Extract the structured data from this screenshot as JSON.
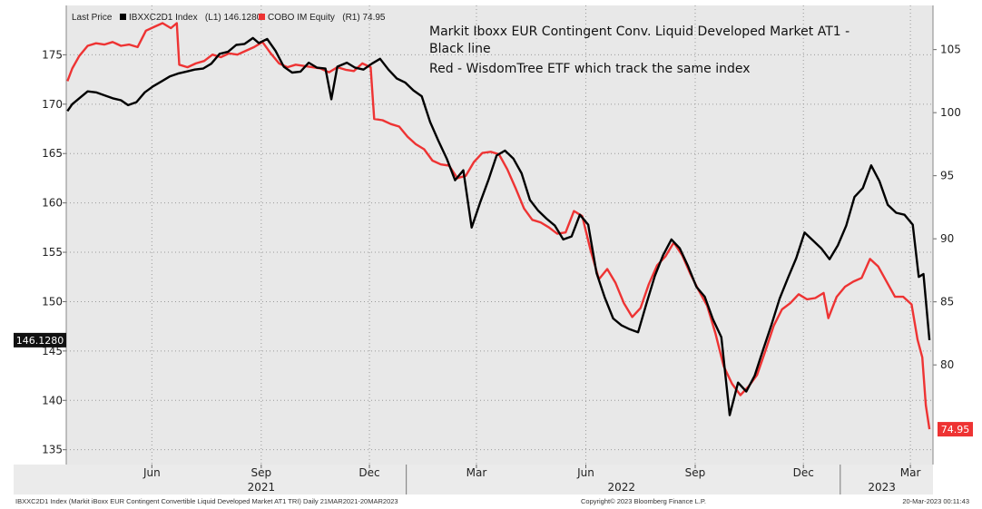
{
  "header": {
    "last_price_label": "Last Price",
    "series1_label": "IBXXC2D1 Index   (L1) 146.1280",
    "series2_label": "COBO IM Equity   (R1) 74.95"
  },
  "annotation": {
    "line1": "Markit Iboxx EUR Contingent Conv. Liquid Developed Market AT1 -",
    "line2": "Black line",
    "line3": "Red - WisdomTree ETF which track the same index"
  },
  "footer": {
    "left": "IBXXC2D1 Index (Markit iBoxx EUR Contingent Convertible Liquid Developed Market AT1 TRI)  Daily 21MAR2021-20MAR2023",
    "center": "Copyright© 2023 Bloomberg Finance L.P.",
    "right": "20-Mar-2023 00:11:43"
  },
  "last_value_tags": {
    "left": "146.1280",
    "right": "74.95"
  },
  "colors": {
    "series1": "#000000",
    "series2": "#ee3333",
    "plot_bg": "#e8e8e8",
    "axis_bg": "#ebebeb"
  },
  "chart_data": {
    "type": "line",
    "x_range": [
      "2021-03-21",
      "2023-03-20"
    ],
    "x_tick_labels": [
      {
        "date": "2021-06-01",
        "label": "Jun"
      },
      {
        "date": "2021-09-01",
        "label": "Sep"
      },
      {
        "date": "2021-12-01",
        "label": "Dec"
      },
      {
        "date": "2022-03-01",
        "label": "Mar"
      },
      {
        "date": "2022-06-01",
        "label": "Jun"
      },
      {
        "date": "2022-09-01",
        "label": "Sep"
      },
      {
        "date": "2022-12-01",
        "label": "Dec"
      },
      {
        "date": "2023-03-01",
        "label": "Mar"
      }
    ],
    "x_year_labels": [
      {
        "date": "2021-09-01",
        "label": "2021"
      },
      {
        "date": "2022-07-01",
        "label": "2022"
      },
      {
        "date": "2023-02-05",
        "label": "2023"
      }
    ],
    "y_left": {
      "range": [
        133.5,
        180
      ],
      "ticks": [
        135,
        140,
        145,
        150,
        155,
        160,
        165,
        170,
        175
      ]
    },
    "y_right": {
      "range": [
        72.1,
        108.5
      ],
      "ticks": [
        80,
        85,
        90,
        95,
        100,
        105
      ]
    },
    "grid": true,
    "series": [
      {
        "axis": "left",
        "points": [
          [
            "2021-03-22",
            169.3
          ],
          [
            "2021-03-26",
            170
          ],
          [
            "2021-04-01",
            170.6
          ],
          [
            "2021-04-08",
            171.3
          ],
          [
            "2021-04-15",
            171.2
          ],
          [
            "2021-04-22",
            170.9
          ],
          [
            "2021-04-29",
            170.6
          ],
          [
            "2021-05-06",
            170.4
          ],
          [
            "2021-05-12",
            169.9
          ],
          [
            "2021-05-19",
            170.2
          ],
          [
            "2021-05-26",
            171.2
          ],
          [
            "2021-06-02",
            171.8
          ],
          [
            "2021-06-09",
            172.3
          ],
          [
            "2021-06-16",
            172.8
          ],
          [
            "2021-06-23",
            173.1
          ],
          [
            "2021-06-30",
            173.3
          ],
          [
            "2021-07-07",
            173.5
          ],
          [
            "2021-07-14",
            173.6
          ],
          [
            "2021-07-21",
            174.1
          ],
          [
            "2021-07-28",
            175.1
          ],
          [
            "2021-08-04",
            175.3
          ],
          [
            "2021-08-11",
            176
          ],
          [
            "2021-08-18",
            176.1
          ],
          [
            "2021-08-25",
            176.7
          ],
          [
            "2021-08-30",
            176.2
          ],
          [
            "2021-09-06",
            176.6
          ],
          [
            "2021-09-13",
            175.4
          ],
          [
            "2021-09-20",
            173.8
          ],
          [
            "2021-09-27",
            173.2
          ],
          [
            "2021-10-04",
            173.3
          ],
          [
            "2021-10-11",
            174.2
          ],
          [
            "2021-10-18",
            173.7
          ],
          [
            "2021-10-25",
            173.6
          ],
          [
            "2021-10-30",
            170.5
          ],
          [
            "2021-11-04",
            173.8
          ],
          [
            "2021-11-12",
            174.2
          ],
          [
            "2021-11-19",
            173.7
          ],
          [
            "2021-11-26",
            173.5
          ],
          [
            "2021-12-03",
            174.1
          ],
          [
            "2021-12-10",
            174.6
          ],
          [
            "2021-12-17",
            173.5
          ],
          [
            "2021-12-24",
            172.6
          ],
          [
            "2021-12-31",
            172.2
          ],
          [
            "2022-01-07",
            171.4
          ],
          [
            "2022-01-14",
            170.8
          ],
          [
            "2022-01-21",
            168.2
          ],
          [
            "2022-01-28",
            166.3
          ],
          [
            "2022-02-04",
            164.5
          ],
          [
            "2022-02-11",
            162.3
          ],
          [
            "2022-02-18",
            163.3
          ],
          [
            "2022-02-25",
            157.5
          ],
          [
            "2022-03-04",
            160
          ],
          [
            "2022-03-11",
            162.3
          ],
          [
            "2022-03-18",
            164.8
          ],
          [
            "2022-03-25",
            165.3
          ],
          [
            "2022-04-01",
            164.5
          ],
          [
            "2022-04-08",
            163
          ],
          [
            "2022-04-15",
            160.3
          ],
          [
            "2022-04-22",
            159.2
          ],
          [
            "2022-04-29",
            158.4
          ],
          [
            "2022-05-06",
            157.7
          ],
          [
            "2022-05-13",
            156.3
          ],
          [
            "2022-05-20",
            156.6
          ],
          [
            "2022-05-27",
            158.8
          ],
          [
            "2022-06-03",
            157.8
          ],
          [
            "2022-06-10",
            152.9
          ],
          [
            "2022-06-17",
            150.4
          ],
          [
            "2022-06-24",
            148.3
          ],
          [
            "2022-07-01",
            147.6
          ],
          [
            "2022-07-08",
            147.2
          ],
          [
            "2022-07-15",
            146.9
          ],
          [
            "2022-07-22",
            149.8
          ],
          [
            "2022-07-29",
            152.6
          ],
          [
            "2022-08-05",
            154.7
          ],
          [
            "2022-08-12",
            156.3
          ],
          [
            "2022-08-19",
            155.4
          ],
          [
            "2022-08-26",
            153.6
          ],
          [
            "2022-09-02",
            151.5
          ],
          [
            "2022-09-09",
            150.5
          ],
          [
            "2022-09-16",
            148.2
          ],
          [
            "2022-09-23",
            146.4
          ],
          [
            "2022-09-30",
            138.5
          ],
          [
            "2022-10-07",
            141.8
          ],
          [
            "2022-10-14",
            140.9
          ],
          [
            "2022-10-21",
            142.5
          ],
          [
            "2022-10-28",
            145.1
          ],
          [
            "2022-11-04",
            147.6
          ],
          [
            "2022-11-11",
            150.3
          ],
          [
            "2022-11-18",
            152.4
          ],
          [
            "2022-11-25",
            154.4
          ],
          [
            "2022-12-02",
            157
          ],
          [
            "2022-12-09",
            156.2
          ],
          [
            "2022-12-16",
            155.4
          ],
          [
            "2022-12-23",
            154.3
          ],
          [
            "2022-12-30",
            155.7
          ],
          [
            "2023-01-06",
            157.7
          ],
          [
            "2023-01-13",
            160.6
          ],
          [
            "2023-01-20",
            161.5
          ],
          [
            "2023-01-27",
            163.8
          ],
          [
            "2023-02-03",
            162.2
          ],
          [
            "2023-02-10",
            159.8
          ],
          [
            "2023-02-17",
            159
          ],
          [
            "2023-02-24",
            158.8
          ],
          [
            "2023-03-03",
            157.8
          ],
          [
            "2023-03-08",
            152.5
          ],
          [
            "2023-03-12",
            152.8
          ],
          [
            "2023-03-17",
            146.1
          ]
        ]
      },
      {
        "axis": "right",
        "points": [
          [
            "2021-03-22",
            102.5
          ],
          [
            "2021-03-26",
            103.5
          ],
          [
            "2021-04-01",
            104.5
          ],
          [
            "2021-04-08",
            105.3
          ],
          [
            "2021-04-15",
            105.5
          ],
          [
            "2021-04-22",
            105.4
          ],
          [
            "2021-04-29",
            105.6
          ],
          [
            "2021-05-06",
            105.3
          ],
          [
            "2021-05-13",
            105.4
          ],
          [
            "2021-05-20",
            105.2
          ],
          [
            "2021-05-27",
            106.5
          ],
          [
            "2021-06-03",
            106.8
          ],
          [
            "2021-06-10",
            107.1
          ],
          [
            "2021-06-17",
            106.7
          ],
          [
            "2021-06-22",
            107.1
          ],
          [
            "2021-06-24",
            103.8
          ],
          [
            "2021-07-01",
            103.6
          ],
          [
            "2021-07-08",
            103.9
          ],
          [
            "2021-07-15",
            104.1
          ],
          [
            "2021-07-22",
            104.6
          ],
          [
            "2021-07-29",
            104.4
          ],
          [
            "2021-08-05",
            104.7
          ],
          [
            "2021-08-12",
            104.6
          ],
          [
            "2021-08-19",
            104.9
          ],
          [
            "2021-08-26",
            105.2
          ],
          [
            "2021-09-02",
            105.6
          ],
          [
            "2021-09-09",
            104.7
          ],
          [
            "2021-09-16",
            103.9
          ],
          [
            "2021-09-23",
            103.6
          ],
          [
            "2021-09-30",
            103.8
          ],
          [
            "2021-10-07",
            103.7
          ],
          [
            "2021-10-14",
            103.6
          ],
          [
            "2021-10-21",
            103.5
          ],
          [
            "2021-10-28",
            103.2
          ],
          [
            "2021-11-04",
            103.6
          ],
          [
            "2021-11-11",
            103.4
          ],
          [
            "2021-11-18",
            103.3
          ],
          [
            "2021-11-25",
            103.9
          ],
          [
            "2021-12-02",
            103.6
          ],
          [
            "2021-12-05",
            99.5
          ],
          [
            "2021-12-12",
            99.4
          ],
          [
            "2021-12-19",
            99.1
          ],
          [
            "2021-12-26",
            98.9
          ],
          [
            "2022-01-02",
            98.1
          ],
          [
            "2022-01-09",
            97.5
          ],
          [
            "2022-01-16",
            97.1
          ],
          [
            "2022-01-23",
            96.2
          ],
          [
            "2022-01-30",
            95.9
          ],
          [
            "2022-02-06",
            95.8
          ],
          [
            "2022-02-13",
            94.8
          ],
          [
            "2022-02-20",
            95
          ],
          [
            "2022-02-27",
            96.1
          ],
          [
            "2022-03-06",
            96.8
          ],
          [
            "2022-03-13",
            96.9
          ],
          [
            "2022-03-20",
            96.7
          ],
          [
            "2022-03-27",
            95.5
          ],
          [
            "2022-04-03",
            94
          ],
          [
            "2022-04-10",
            92.4
          ],
          [
            "2022-04-17",
            91.5
          ],
          [
            "2022-04-24",
            91.3
          ],
          [
            "2022-05-01",
            90.9
          ],
          [
            "2022-05-08",
            90.4
          ],
          [
            "2022-05-15",
            90.5
          ],
          [
            "2022-05-22",
            92.2
          ],
          [
            "2022-05-29",
            91.8
          ],
          [
            "2022-06-05",
            89.1
          ],
          [
            "2022-06-12",
            86.8
          ],
          [
            "2022-06-19",
            87.6
          ],
          [
            "2022-06-26",
            86.5
          ],
          [
            "2022-07-03",
            84.9
          ],
          [
            "2022-07-10",
            83.8
          ],
          [
            "2022-07-17",
            84.5
          ],
          [
            "2022-07-24",
            86.4
          ],
          [
            "2022-07-31",
            87.9
          ],
          [
            "2022-08-07",
            88.6
          ],
          [
            "2022-08-14",
            89.7
          ],
          [
            "2022-08-21",
            88.7
          ],
          [
            "2022-08-28",
            87.2
          ],
          [
            "2022-09-04",
            85.9
          ],
          [
            "2022-09-11",
            84.7
          ],
          [
            "2022-09-18",
            82.5
          ],
          [
            "2022-09-25",
            79.9
          ],
          [
            "2022-10-02",
            78.5
          ],
          [
            "2022-10-09",
            77.6
          ],
          [
            "2022-10-16",
            78.3
          ],
          [
            "2022-10-23",
            79.2
          ],
          [
            "2022-10-30",
            81.1
          ],
          [
            "2022-11-06",
            83.1
          ],
          [
            "2022-11-13",
            84.4
          ],
          [
            "2022-11-20",
            84.9
          ],
          [
            "2022-11-27",
            85.6
          ],
          [
            "2022-12-04",
            85.2
          ],
          [
            "2022-12-11",
            85.3
          ],
          [
            "2022-12-18",
            85.7
          ],
          [
            "2022-12-22",
            83.7
          ],
          [
            "2022-12-29",
            85.4
          ],
          [
            "2023-01-05",
            86.2
          ],
          [
            "2023-01-12",
            86.6
          ],
          [
            "2023-01-19",
            86.9
          ],
          [
            "2023-01-26",
            88.4
          ],
          [
            "2023-02-02",
            87.8
          ],
          [
            "2023-02-09",
            86.6
          ],
          [
            "2023-02-16",
            85.4
          ],
          [
            "2023-02-23",
            85.4
          ],
          [
            "2023-03-02",
            84.8
          ],
          [
            "2023-03-07",
            82
          ],
          [
            "2023-03-11",
            80.6
          ],
          [
            "2023-03-14",
            76.8
          ],
          [
            "2023-03-17",
            74.9
          ]
        ]
      }
    ]
  }
}
